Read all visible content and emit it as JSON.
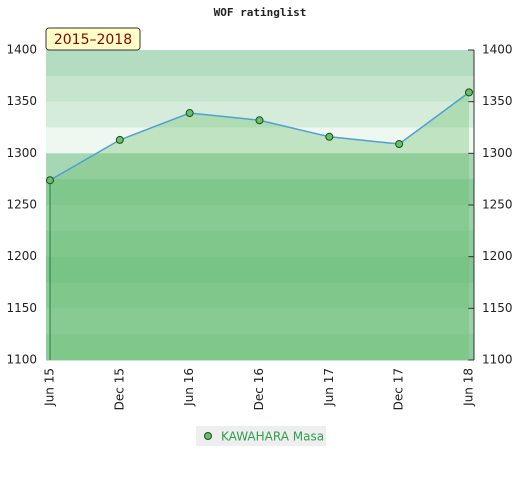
{
  "chart_data": {
    "type": "line",
    "title": "WOF ratinglist",
    "period_label": "2015–2018",
    "categories": [
      "Jun 15",
      "Dec 15",
      "Jun 16",
      "Dec 16",
      "Jun 17",
      "Dec 17",
      "Jun 18"
    ],
    "series": [
      {
        "name": "KAWAHARA Masa",
        "color": "#6abf69",
        "line_color": "#4f9fd6",
        "values": [
          1274,
          1313,
          1339,
          1332,
          1316,
          1309,
          1359
        ]
      }
    ],
    "ylim": [
      1100,
      1400
    ],
    "yticks": [
      1100,
      1150,
      1200,
      1250,
      1300,
      1350,
      1400
    ]
  }
}
